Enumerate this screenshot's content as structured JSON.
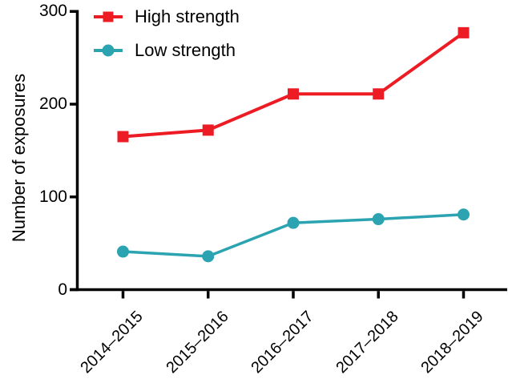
{
  "chart_data": {
    "type": "line",
    "title": "",
    "xlabel": "",
    "ylabel": "Number of exposures",
    "categories": [
      "2014–2015",
      "2015–2016",
      "2016–2017",
      "2017–2018",
      "2018–2019"
    ],
    "y_ticks": [
      0,
      100,
      200,
      300
    ],
    "ylim": [
      0,
      300
    ],
    "grid": false,
    "legend_position": "top-left inside plot",
    "series": [
      {
        "name": "High strength",
        "color": "#ED1C24",
        "marker": "square",
        "values": [
          165,
          172,
          211,
          211,
          277
        ]
      },
      {
        "name": "Low strength",
        "color": "#2BA3B1",
        "marker": "circle",
        "values": [
          41,
          36,
          72,
          76,
          81
        ]
      }
    ]
  },
  "colors": {
    "axis": "#000000",
    "text": "#000000",
    "background": "#FFFFFF"
  }
}
